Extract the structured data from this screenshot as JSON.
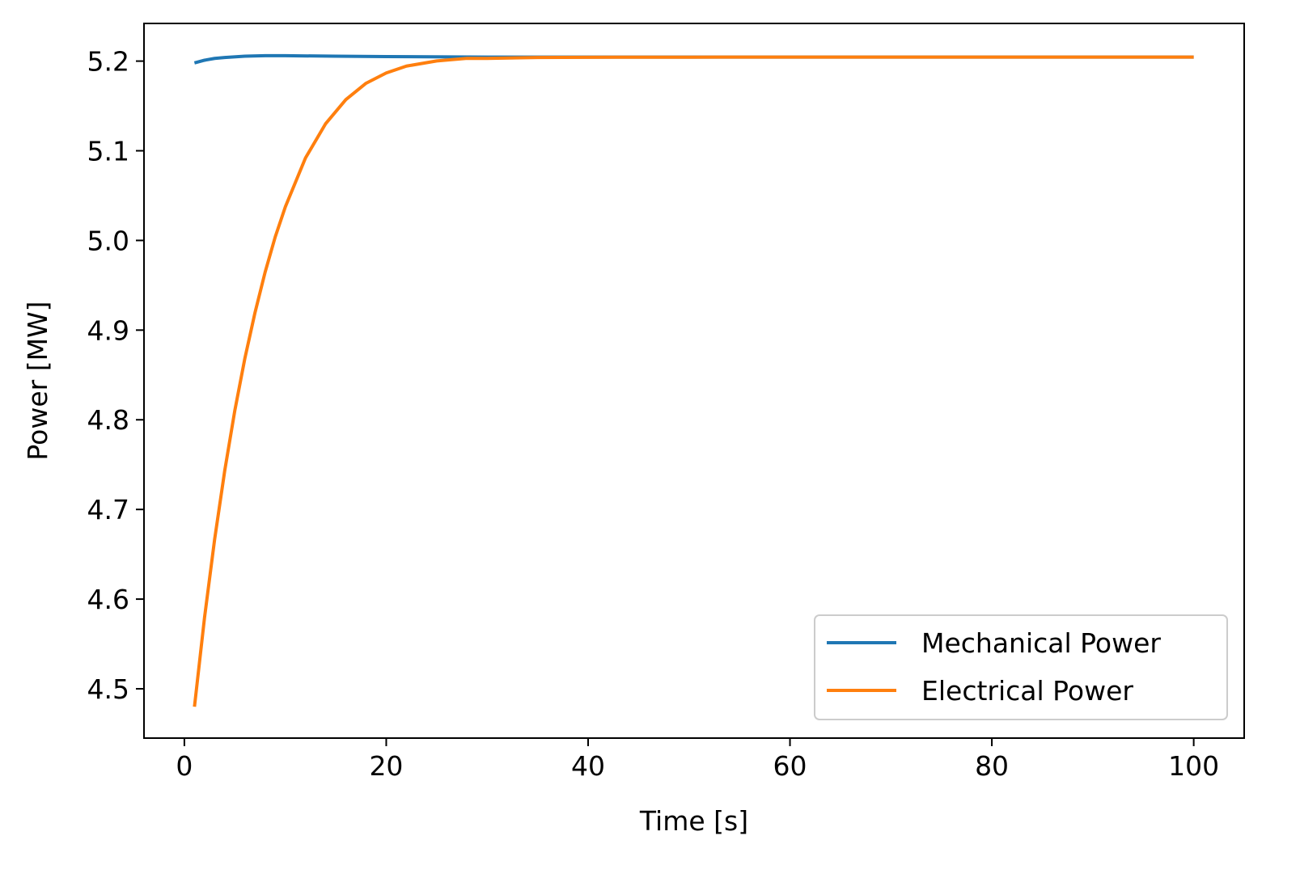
{
  "chart_data": {
    "type": "line",
    "title": "",
    "xlabel": "Time [s]",
    "ylabel": "Power [MW]",
    "xlim": [
      -4,
      105
    ],
    "ylim": [
      4.445,
      5.242
    ],
    "xticks": [
      0,
      20,
      40,
      60,
      80,
      100
    ],
    "xtick_labels": [
      "0",
      "20",
      "40",
      "60",
      "80",
      "100"
    ],
    "yticks": [
      4.5,
      4.6,
      4.7,
      4.8,
      4.9,
      5.0,
      5.1,
      5.2
    ],
    "ytick_labels": [
      "4.5",
      "4.6",
      "4.7",
      "4.8",
      "4.9",
      "5.0",
      "5.1",
      "5.2"
    ],
    "grid": false,
    "legend_position": "lower right",
    "series": [
      {
        "name": "Mechanical Power",
        "color": "#1f77b4",
        "x": [
          1,
          2,
          3,
          4,
          6,
          8,
          10,
          15,
          20,
          30,
          40,
          50,
          60,
          80,
          100
        ],
        "y": [
          5.198,
          5.201,
          5.203,
          5.204,
          5.2055,
          5.206,
          5.206,
          5.2055,
          5.205,
          5.2045,
          5.2045,
          5.2045,
          5.2045,
          5.2045,
          5.2045
        ]
      },
      {
        "name": "Electrical Power",
        "color": "#ff7f0e",
        "x": [
          1,
          2,
          3,
          4,
          5,
          6,
          7,
          8,
          9,
          10,
          12,
          14,
          16,
          18,
          20,
          22,
          25,
          28,
          30,
          35,
          40,
          45,
          50,
          55,
          60,
          70,
          80,
          90,
          100
        ],
        "y": [
          4.48,
          4.584,
          4.675,
          4.755,
          4.825,
          4.886,
          4.939,
          4.986,
          5.027,
          5.062,
          5.119,
          5.159,
          5.187,
          5.206,
          5.218,
          5.226,
          5.232,
          5.235,
          5.235,
          5.236,
          5.2362,
          5.2364,
          5.2364,
          5.2365,
          5.2365,
          5.2365,
          5.2365,
          5.2365,
          5.2365
        ],
        "note_scale": "offset"
      }
    ]
  }
}
